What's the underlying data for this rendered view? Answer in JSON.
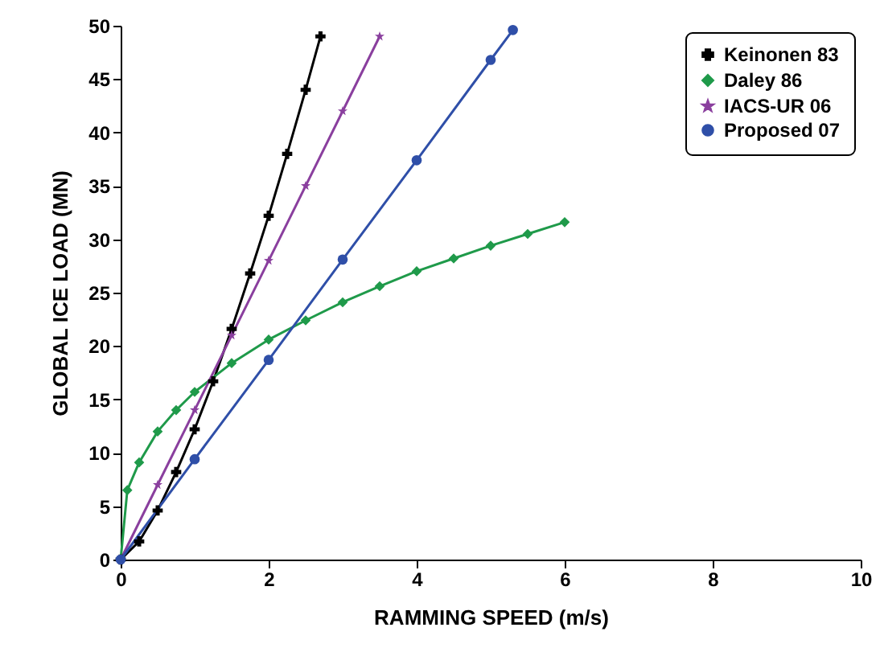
{
  "chart_data": {
    "type": "line",
    "xlabel": "RAMMING SPEED (m/s)",
    "ylabel": "GLOBAL ICE LOAD (MN)",
    "xlim": [
      0,
      10
    ],
    "ylim": [
      0,
      50
    ],
    "xticks": [
      0,
      2,
      4,
      6,
      8,
      10
    ],
    "yticks": [
      0,
      5,
      10,
      15,
      20,
      25,
      30,
      35,
      40,
      45,
      50
    ],
    "legend": "top right",
    "series": [
      {
        "name": "Keinonen 83",
        "color": "#000000",
        "marker": "cross",
        "x": [
          0,
          0.25,
          0.5,
          0.75,
          1,
          1.25,
          1.5,
          1.75,
          2,
          2.25,
          2.5,
          2.7
        ],
        "values": [
          0,
          1.7,
          4.6,
          8.2,
          12.2,
          16.7,
          21.6,
          26.8,
          32.2,
          38.0,
          44.0,
          49.0
        ]
      },
      {
        "name": "Daley 86",
        "color": "#1f9a4a",
        "marker": "diamond",
        "x": [
          0,
          0.09,
          0.25,
          0.5,
          0.75,
          1,
          1.5,
          2,
          2.5,
          3,
          3.5,
          4,
          4.5,
          5,
          5.5,
          6
        ],
        "values": [
          0,
          6.5,
          9.1,
          12.0,
          14.0,
          15.7,
          18.4,
          20.6,
          22.4,
          24.1,
          25.6,
          27.0,
          28.2,
          29.4,
          30.5,
          31.6
        ]
      },
      {
        "name": "IACS-UR 06",
        "color": "#8a3f9e",
        "marker": "star",
        "x": [
          0,
          0.5,
          1,
          1.5,
          2,
          2.5,
          3,
          3.5
        ],
        "values": [
          0,
          7,
          14,
          21,
          28,
          35,
          42,
          49
        ]
      },
      {
        "name": "Proposed 07",
        "color": "#2f4fa8",
        "marker": "circle",
        "x": [
          0,
          1,
          2,
          3,
          4,
          5,
          5.3
        ],
        "values": [
          0,
          9.4,
          18.7,
          28.1,
          37.4,
          46.8,
          49.6
        ]
      }
    ]
  }
}
